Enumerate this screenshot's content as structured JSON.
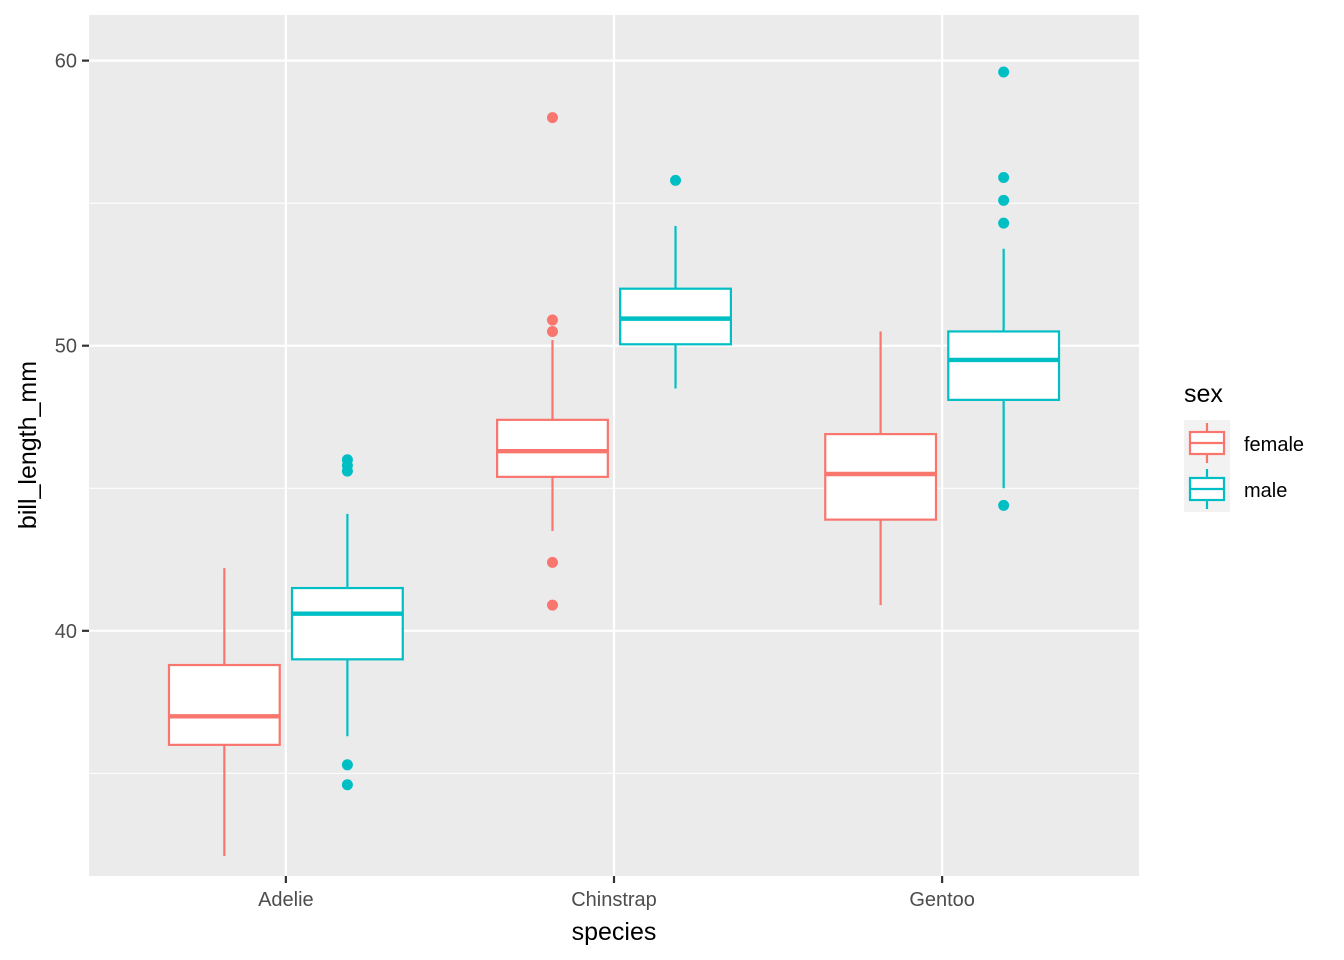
{
  "chart_data": {
    "type": "boxplot",
    "xlabel": "species",
    "ylabel": "bill_length_mm",
    "categories": [
      "Adelie",
      "Chinstrap",
      "Gentoo"
    ],
    "ylim": [
      31.4,
      61.6
    ],
    "yticks": [
      40,
      50,
      60
    ],
    "grid": true,
    "legend": {
      "title": "sex",
      "position": "right"
    },
    "series": [
      {
        "name": "female",
        "color": "#F8766D",
        "boxes": [
          {
            "category": "Adelie",
            "min": 32.1,
            "q1": 36.0,
            "median": 37.0,
            "q3": 38.8,
            "max": 42.2,
            "outliers": []
          },
          {
            "category": "Chinstrap",
            "min": 43.5,
            "q1": 45.4,
            "median": 46.3,
            "q3": 47.4,
            "max": 50.2,
            "outliers": [
              58.0,
              50.9,
              50.5,
              42.4,
              40.9
            ]
          },
          {
            "category": "Gentoo",
            "min": 40.9,
            "q1": 43.9,
            "median": 45.5,
            "q3": 46.9,
            "max": 50.5,
            "outliers": []
          }
        ]
      },
      {
        "name": "male",
        "color": "#00BFC4",
        "boxes": [
          {
            "category": "Adelie",
            "min": 36.3,
            "q1": 39.0,
            "median": 40.6,
            "q3": 41.5,
            "max": 44.1,
            "outliers": [
              46.0,
              45.8,
              45.6,
              35.3,
              34.6
            ]
          },
          {
            "category": "Chinstrap",
            "min": 48.5,
            "q1": 50.05,
            "median": 50.95,
            "q3": 52.0,
            "max": 54.2,
            "outliers": [
              55.8
            ]
          },
          {
            "category": "Gentoo",
            "min": 45.0,
            "q1": 48.1,
            "median": 49.5,
            "q3": 50.5,
            "max": 53.4,
            "outliers": [
              59.6,
              55.9,
              55.1,
              54.3,
              44.4
            ]
          }
        ]
      }
    ]
  }
}
